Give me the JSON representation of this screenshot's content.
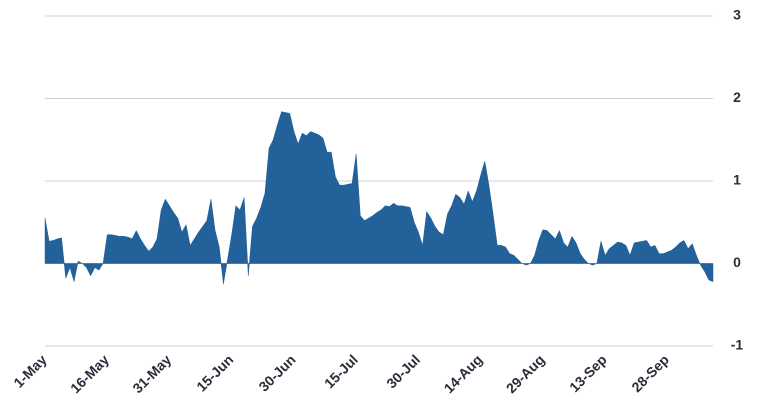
{
  "chart_data": {
    "type": "area",
    "color": "#23619b",
    "grid": true,
    "ylim": [
      -1,
      3
    ],
    "yticks": [
      -1,
      0,
      1,
      2,
      3
    ],
    "categories": [
      "1-May",
      null,
      null,
      null,
      null,
      null,
      null,
      null,
      null,
      null,
      null,
      null,
      null,
      null,
      null,
      "16-May",
      null,
      null,
      null,
      null,
      null,
      null,
      null,
      null,
      null,
      null,
      null,
      null,
      null,
      null,
      "31-May",
      null,
      null,
      null,
      null,
      null,
      null,
      null,
      null,
      null,
      null,
      null,
      null,
      null,
      null,
      "15-Jun",
      null,
      null,
      null,
      null,
      null,
      null,
      null,
      null,
      null,
      null,
      null,
      null,
      null,
      null,
      "30-Jun",
      null,
      null,
      null,
      null,
      null,
      null,
      null,
      null,
      null,
      null,
      null,
      null,
      null,
      null,
      "15-Jul",
      null,
      null,
      null,
      null,
      null,
      null,
      null,
      null,
      null,
      null,
      null,
      null,
      null,
      null,
      "30-Jul",
      null,
      null,
      null,
      null,
      null,
      null,
      null,
      null,
      null,
      null,
      null,
      null,
      null,
      null,
      "14-Aug",
      null,
      null,
      null,
      null,
      null,
      null,
      null,
      null,
      null,
      null,
      null,
      null,
      null,
      null,
      "29-Aug",
      null,
      null,
      null,
      null,
      null,
      null,
      null,
      null,
      null,
      null,
      null,
      null,
      null,
      null,
      "13-Sep",
      null,
      null,
      null,
      null,
      null,
      null,
      null,
      null,
      null,
      null,
      null,
      null,
      null,
      null,
      "28-Sep",
      null,
      null,
      null,
      null,
      null,
      null,
      null,
      null,
      null,
      null,
      null
    ],
    "values": [
      0.55,
      0.27,
      0.28,
      0.3,
      0.31,
      -0.18,
      -0.05,
      -0.22,
      0.03,
      0.0,
      -0.05,
      -0.15,
      -0.05,
      -0.08,
      0.0,
      0.35,
      0.35,
      0.34,
      0.33,
      0.33,
      0.32,
      0.3,
      0.4,
      0.3,
      0.22,
      0.15,
      0.2,
      0.3,
      0.65,
      0.78,
      0.7,
      0.62,
      0.55,
      0.38,
      0.47,
      0.22,
      0.3,
      0.38,
      0.45,
      0.52,
      0.78,
      0.4,
      0.2,
      -0.25,
      0.05,
      0.35,
      0.7,
      0.65,
      0.8,
      -0.15,
      0.45,
      0.55,
      0.68,
      0.85,
      1.4,
      1.5,
      1.68,
      1.84,
      1.83,
      1.82,
      1.6,
      1.45,
      1.58,
      1.55,
      1.6,
      1.58,
      1.56,
      1.52,
      1.35,
      1.35,
      1.05,
      0.95,
      0.95,
      0.96,
      0.97,
      1.33,
      0.58,
      0.52,
      0.55,
      0.58,
      0.62,
      0.65,
      0.7,
      0.69,
      0.73,
      0.7,
      0.7,
      0.69,
      0.68,
      0.5,
      0.38,
      0.22,
      0.63,
      0.55,
      0.45,
      0.38,
      0.35,
      0.6,
      0.7,
      0.84,
      0.8,
      0.72,
      0.88,
      0.75,
      0.88,
      1.07,
      1.24,
      0.95,
      0.6,
      0.22,
      0.22,
      0.2,
      0.12,
      0.1,
      0.05,
      0.0,
      -0.02,
      0.0,
      0.1,
      0.28,
      0.41,
      0.4,
      0.35,
      0.3,
      0.4,
      0.25,
      0.2,
      0.33,
      0.25,
      0.12,
      0.05,
      0.0,
      -0.02,
      0.0,
      0.27,
      0.1,
      0.18,
      0.22,
      0.26,
      0.25,
      0.22,
      0.1,
      0.25,
      0.26,
      0.27,
      0.28,
      0.2,
      0.22,
      0.12,
      0.12,
      0.14,
      0.16,
      0.2,
      0.25,
      0.28,
      0.18,
      0.24,
      0.1,
      -0.02,
      -0.1,
      -0.2,
      -0.22
    ]
  }
}
